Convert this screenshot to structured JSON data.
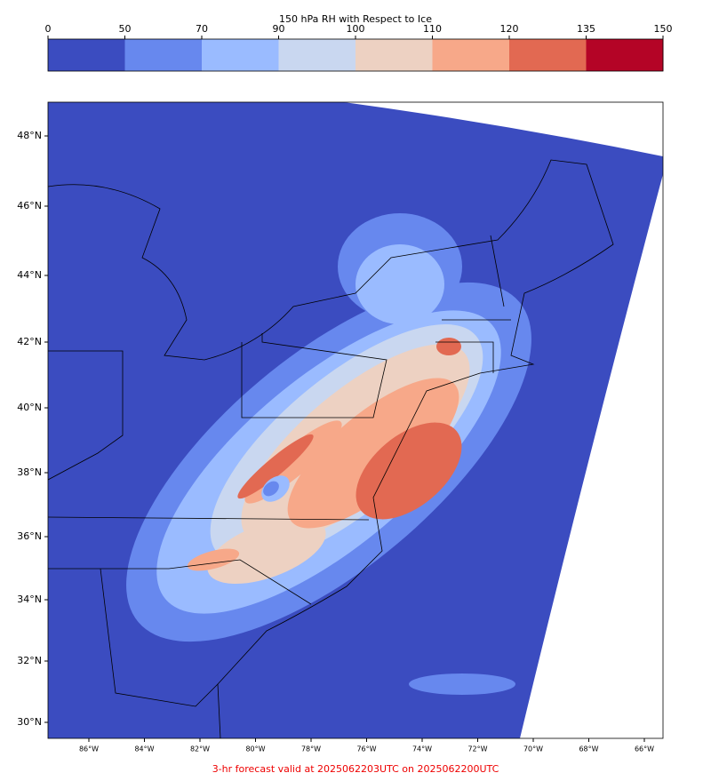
{
  "colorbar": {
    "title": "150 hPa RH with Respect to Ice",
    "ticks": [
      0,
      50,
      70,
      90,
      100,
      110,
      120,
      135,
      150
    ],
    "colors": [
      "#3b4cc0",
      "#6788ee",
      "#9abbff",
      "#c9d7f0",
      "#edd1c2",
      "#f7a889",
      "#e26952",
      "#b40426"
    ]
  },
  "map": {
    "lat_labels": [
      "48°N",
      "46°N",
      "44°N",
      "42°N",
      "40°N",
      "38°N",
      "36°N",
      "34°N",
      "32°N",
      "30°N"
    ],
    "lon_labels": [
      "86°W",
      "84°W",
      "82°W",
      "80°W",
      "78°W",
      "76°W",
      "74°W",
      "72°W",
      "70°W",
      "68°W",
      "66°W"
    ]
  },
  "footer": "3-hr forecast valid at 2025062203UTC on 2025062200UTC"
}
